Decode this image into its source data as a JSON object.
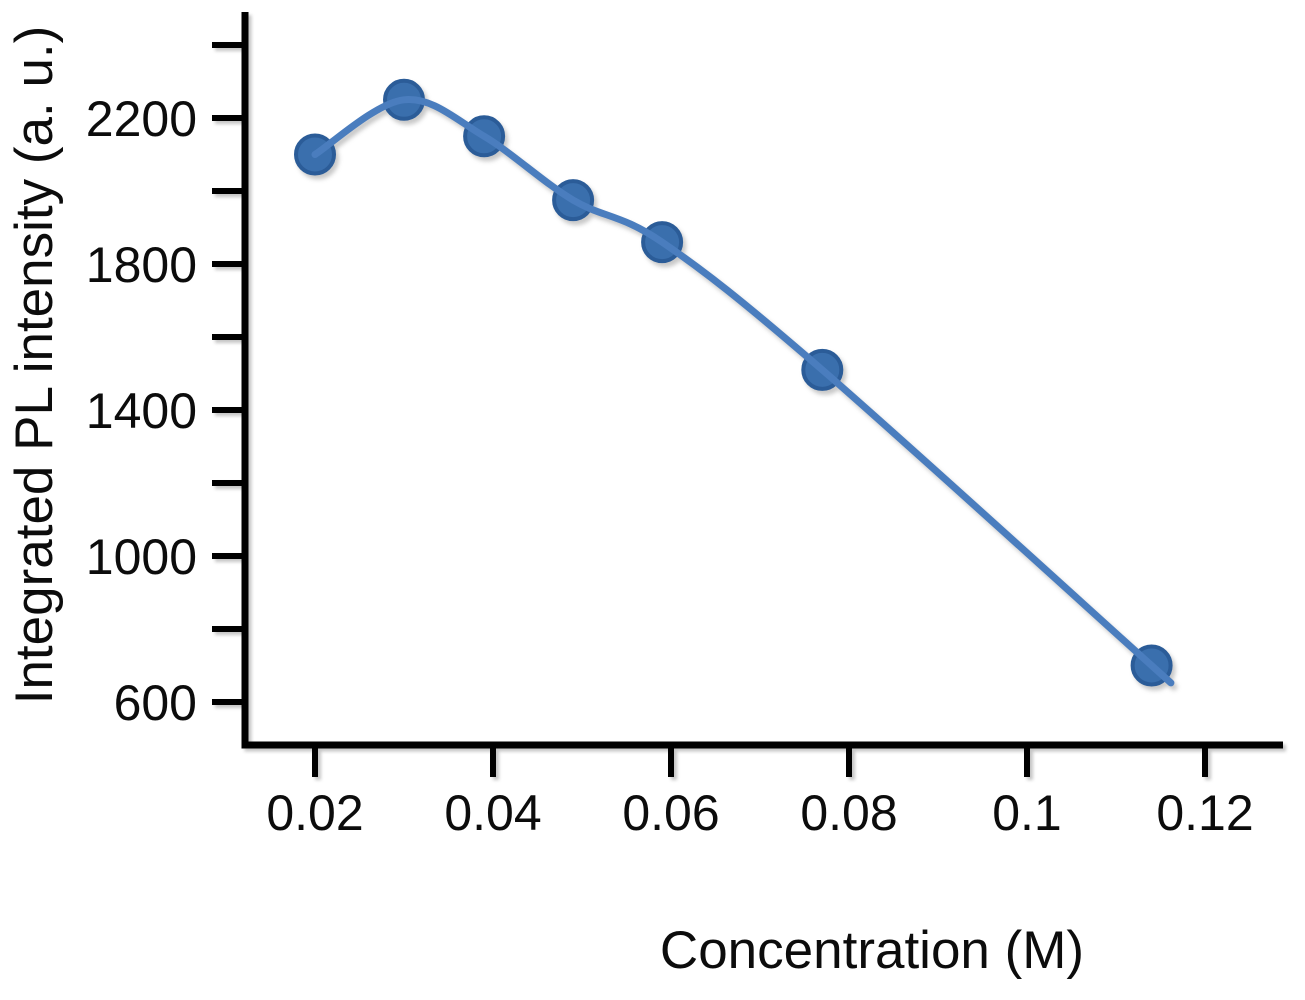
{
  "chart_data": {
    "type": "line",
    "xlabel": "Concentration (M)",
    "ylabel": "Integrated PL intensity (a. u.)",
    "x": [
      0.02,
      0.03,
      0.039,
      0.049,
      0.059,
      0.077,
      0.114
    ],
    "series": [
      {
        "name": "Integrated PL intensity",
        "values": [
          2100,
          2250,
          2150,
          1975,
          1860,
          1510,
          700
        ]
      }
    ],
    "xlim": [
      0.012,
      0.129
    ],
    "ylim": [
      480,
      2490
    ],
    "x_ticks": [
      {
        "value": 0.02,
        "label": "0.02"
      },
      {
        "value": 0.04,
        "label": "0.04"
      },
      {
        "value": 0.06,
        "label": "0.06"
      },
      {
        "value": 0.08,
        "label": "0.08"
      },
      {
        "value": 0.1,
        "label": "0.1"
      },
      {
        "value": 0.12,
        "label": "0.12"
      }
    ],
    "y_ticks": [
      {
        "value": 600,
        "label": "600"
      },
      {
        "value": 800,
        "label": ""
      },
      {
        "value": 1000,
        "label": "1000"
      },
      {
        "value": 1200,
        "label": ""
      },
      {
        "value": 1400,
        "label": "1400"
      },
      {
        "value": 1600,
        "label": ""
      },
      {
        "value": 1800,
        "label": "1800"
      },
      {
        "value": 2000,
        "label": ""
      },
      {
        "value": 2200,
        "label": "2200"
      },
      {
        "value": 2400,
        "label": ""
      }
    ],
    "grid": false,
    "legend": false,
    "colors": {
      "line": "#4a7dbe",
      "marker_fill": "#3a6fad",
      "marker_stroke": "#2b5c98",
      "axis": "#000000",
      "text": "#0c0c0c"
    }
  }
}
